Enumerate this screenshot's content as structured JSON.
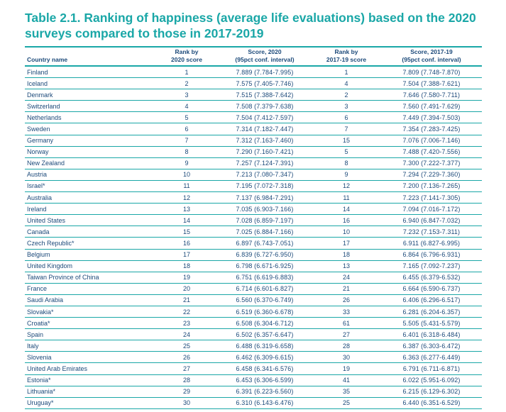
{
  "title": {
    "line1": "Table 2.1. Ranking of happiness (average life evaluations) based on the 2020",
    "line2": "surveys compared to those in 2017-2019"
  },
  "headers": {
    "country": "Country name",
    "rank2020_line1": "Rank by",
    "rank2020_line2": "2020 score",
    "score2020_line1": "Score, 2020",
    "score2020_line2": "(95pct conf. interval)",
    "rank1719_line1": "Rank by",
    "rank1719_line2": "2017-19 score",
    "score1719_line1": "Score, 2017-19",
    "score1719_line2": "(95pct conf. interval)"
  },
  "rows": [
    {
      "country": "Finland",
      "rank2020": "1",
      "score2020": "7.889 (7.784-7.995)",
      "rank1719": "1",
      "score1719": "7.809 (7.748-7.870)"
    },
    {
      "country": "Iceland",
      "rank2020": "2",
      "score2020": "7.575 (7.405-7.746)",
      "rank1719": "4",
      "score1719": "7.504 (7.388-7.621)"
    },
    {
      "country": "Denmark",
      "rank2020": "3",
      "score2020": "7.515 (7.388-7.642)",
      "rank1719": "2",
      "score1719": "7.646 (7.580-7.711)"
    },
    {
      "country": "Switzerland",
      "rank2020": "4",
      "score2020": "7.508 (7.379-7.638)",
      "rank1719": "3",
      "score1719": "7.560 (7.491-7.629)"
    },
    {
      "country": "Netherlands",
      "rank2020": "5",
      "score2020": "7.504 (7.412-7.597)",
      "rank1719": "6",
      "score1719": "7.449 (7.394-7.503)"
    },
    {
      "country": "Sweden",
      "rank2020": "6",
      "score2020": "7.314 (7.182-7.447)",
      "rank1719": "7",
      "score1719": "7.354 (7.283-7.425)"
    },
    {
      "country": "Germany",
      "rank2020": "7",
      "score2020": "7.312 (7.163-7.460)",
      "rank1719": "15",
      "score1719": "7.076 (7.006-7.146)"
    },
    {
      "country": "Norway",
      "rank2020": "8",
      "score2020": "7.290 (7.160-7.421)",
      "rank1719": "5",
      "score1719": "7.488 (7.420-7.556)"
    },
    {
      "country": "New Zealand",
      "rank2020": "9",
      "score2020": "7.257 (7.124-7.391)",
      "rank1719": "8",
      "score1719": "7.300 (7.222-7.377)"
    },
    {
      "country": "Austria",
      "rank2020": "10",
      "score2020": "7.213 (7.080-7.347)",
      "rank1719": "9",
      "score1719": "7.294 (7.229-7.360)"
    },
    {
      "country": "Israel*",
      "rank2020": "11",
      "score2020": "7.195 (7.072-7.318)",
      "rank1719": "12",
      "score1719": "7.200 (7.136-7.265)"
    },
    {
      "country": "Australia",
      "rank2020": "12",
      "score2020": "7.137 (6.984-7.291)",
      "rank1719": "11",
      "score1719": "7.223 (7.141-7.305)"
    },
    {
      "country": "Ireland",
      "rank2020": "13",
      "score2020": "7.035 (6.903-7.166)",
      "rank1719": "14",
      "score1719": "7.094 (7.016-7.172)"
    },
    {
      "country": "United States",
      "rank2020": "14",
      "score2020": "7.028 (6.859-7.197)",
      "rank1719": "16",
      "score1719": "6.940 (6.847-7.032)"
    },
    {
      "country": "Canada",
      "rank2020": "15",
      "score2020": "7.025 (6.884-7.166)",
      "rank1719": "10",
      "score1719": "7.232 (7.153-7.311)"
    },
    {
      "country": "Czech Republic*",
      "rank2020": "16",
      "score2020": "6.897 (6.743-7.051)",
      "rank1719": "17",
      "score1719": "6.911 (6.827-6.995)"
    },
    {
      "country": "Belgium",
      "rank2020": "17",
      "score2020": "6.839 (6.727-6.950)",
      "rank1719": "18",
      "score1719": "6.864 (6.796-6.931)"
    },
    {
      "country": "United Kingdom",
      "rank2020": "18",
      "score2020": "6.798 (6.671-6.925)",
      "rank1719": "13",
      "score1719": "7.165 (7.092-7.237)"
    },
    {
      "country": "Taiwan Province of China",
      "rank2020": "19",
      "score2020": "6.751 (6.619-6.883)",
      "rank1719": "24",
      "score1719": "6.455 (6.379-6.532)"
    },
    {
      "country": "France",
      "rank2020": "20",
      "score2020": "6.714 (6.601-6.827)",
      "rank1719": "21",
      "score1719": "6.664 (6.590-6.737)"
    },
    {
      "country": "Saudi Arabia",
      "rank2020": "21",
      "score2020": "6.560 (6.370-6.749)",
      "rank1719": "26",
      "score1719": "6.406 (6.296-6.517)"
    },
    {
      "country": "Slovakia*",
      "rank2020": "22",
      "score2020": "6.519 (6.360-6.678)",
      "rank1719": "33",
      "score1719": "6.281 (6.204-6.357)"
    },
    {
      "country": "Croatia*",
      "rank2020": "23",
      "score2020": "6.508 (6.304-6.712)",
      "rank1719": "61",
      "score1719": "5.505 (5.431-5.579)"
    },
    {
      "country": "Spain",
      "rank2020": "24",
      "score2020": "6.502 (6.357-6.647)",
      "rank1719": "27",
      "score1719": "6.401 (6.318-6.484)"
    },
    {
      "country": "Italy",
      "rank2020": "25",
      "score2020": "6.488 (6.319-6.658)",
      "rank1719": "28",
      "score1719": "6.387 (6.303-6.472)"
    },
    {
      "country": "Slovenia",
      "rank2020": "26",
      "score2020": "6.462 (6.309-6.615)",
      "rank1719": "30",
      "score1719": "6.363 (6.277-6.449)"
    },
    {
      "country": "United Arab Emirates",
      "rank2020": "27",
      "score2020": "6.458 (6.341-6.576)",
      "rank1719": "19",
      "score1719": "6.791 (6.711-6.871)"
    },
    {
      "country": "Estonia*",
      "rank2020": "28",
      "score2020": "6.453 (6.306-6.599)",
      "rank1719": "41",
      "score1719": "6.022 (5.951-6.092)"
    },
    {
      "country": "Lithuania*",
      "rank2020": "29",
      "score2020": "6.391 (6.223-6.560)",
      "rank1719": "35",
      "score1719": "6.215 (6.129-6.302)"
    },
    {
      "country": "Uruguay*",
      "rank2020": "30",
      "score2020": "6.310 (6.143-6.476)",
      "rank1719": "25",
      "score1719": "6.440 (6.351-6.529)"
    }
  ]
}
